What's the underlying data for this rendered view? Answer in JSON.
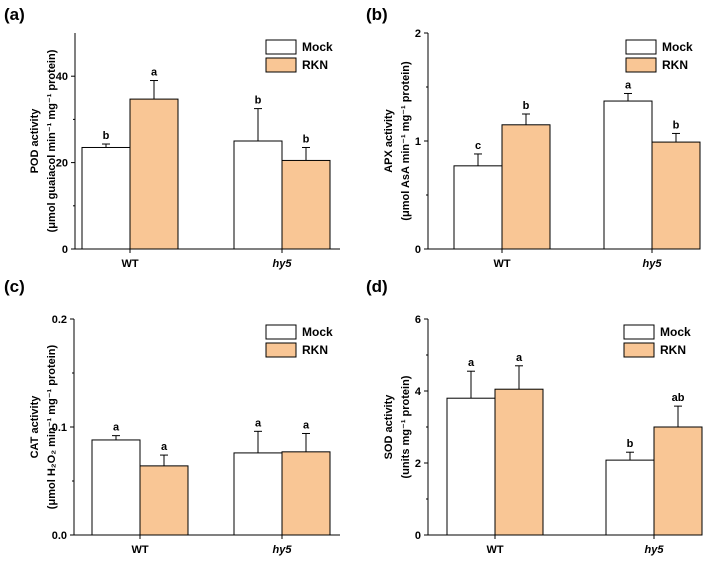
{
  "colors": {
    "mock": "#ffffff",
    "rkn": "#f9c695",
    "stroke": "#000000"
  },
  "legend": [
    "Mock",
    "RKN"
  ],
  "chart_data": [
    {
      "type": "bar",
      "panel_label": "(a)",
      "title": "",
      "ylabel_line1": "POD activity",
      "ylabel_line2": "(μmol guaiacol min⁻¹ mg⁻¹ protein)",
      "categories": [
        "WT",
        "hy5"
      ],
      "ylim": [
        0,
        50
      ],
      "yticks": [
        0,
        20,
        40
      ],
      "tick_labels": [
        "0",
        "20",
        "40"
      ],
      "series": [
        {
          "name": "Mock",
          "values": [
            23.5,
            25.0
          ],
          "errors": [
            0.8,
            7.5
          ],
          "letters": [
            "b",
            "b"
          ]
        },
        {
          "name": "RKN",
          "values": [
            34.7,
            20.5
          ],
          "errors": [
            4.3,
            3.0
          ],
          "letters": [
            "a",
            "b"
          ]
        }
      ]
    },
    {
      "type": "bar",
      "panel_label": "(b)",
      "title": "",
      "ylabel_line1": "APX activity",
      "ylabel_line2": "(μmol AsA min⁻¹ mg⁻¹ protein)",
      "categories": [
        "WT",
        "hy5"
      ],
      "ylim": [
        0,
        2
      ],
      "yticks": [
        0,
        1,
        2
      ],
      "tick_labels": [
        "0",
        "1",
        "2"
      ],
      "series": [
        {
          "name": "Mock",
          "values": [
            0.77,
            1.37
          ],
          "errors": [
            0.11,
            0.07
          ],
          "letters": [
            "c",
            "a"
          ]
        },
        {
          "name": "RKN",
          "values": [
            1.15,
            0.99
          ],
          "errors": [
            0.1,
            0.08
          ],
          "letters": [
            "b",
            "b"
          ]
        }
      ]
    },
    {
      "type": "bar",
      "panel_label": "(c)",
      "title": "",
      "ylabel_line1": "CAT activity",
      "ylabel_line2": "(μmol H₂O₂ min⁻¹ mg⁻¹ protein)",
      "categories": [
        "WT",
        "hy5"
      ],
      "ylim": [
        0,
        0.2
      ],
      "yticks": [
        0,
        0.1,
        0.2
      ],
      "tick_labels": [
        "0.0",
        "0.1",
        "0.2"
      ],
      "series": [
        {
          "name": "Mock",
          "values": [
            0.088,
            0.076
          ],
          "errors": [
            0.004,
            0.02
          ],
          "letters": [
            "a",
            "a"
          ]
        },
        {
          "name": "RKN",
          "values": [
            0.064,
            0.077
          ],
          "errors": [
            0.01,
            0.017
          ],
          "letters": [
            "a",
            "a"
          ]
        }
      ]
    },
    {
      "type": "bar",
      "panel_label": "(d)",
      "title": "",
      "ylabel_line1": "SOD activity",
      "ylabel_line2": "(units mg⁻¹ protein)",
      "categories": [
        "WT",
        "hy5"
      ],
      "ylim": [
        0,
        6
      ],
      "yticks": [
        0,
        2,
        4,
        6
      ],
      "tick_labels": [
        "0",
        "2",
        "4",
        "6"
      ],
      "series": [
        {
          "name": "Mock",
          "values": [
            3.8,
            2.08
          ],
          "errors": [
            0.75,
            0.22
          ],
          "letters": [
            "a",
            "b"
          ]
        },
        {
          "name": "RKN",
          "values": [
            4.05,
            3.0
          ],
          "errors": [
            0.65,
            0.58
          ],
          "letters": [
            "a",
            "ab"
          ]
        }
      ]
    }
  ]
}
